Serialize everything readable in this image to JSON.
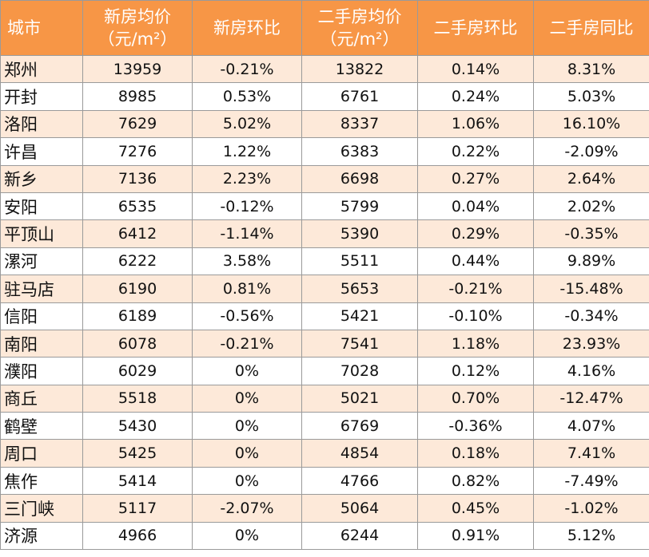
{
  "table": {
    "headers": {
      "city": "城市",
      "new_price_line1": "新房均价",
      "new_price_line2": "（元/m²）",
      "new_mom": "新房环比",
      "second_price_line1": "二手房均价",
      "second_price_line2": "（元/m²）",
      "second_mom": "二手房环比",
      "second_yoy": "二手房同比"
    },
    "rows": [
      {
        "city": "郑州",
        "new_price": "13959",
        "new_mom": "-0.21%",
        "second_price": "13822",
        "second_mom": "0.14%",
        "second_yoy": "8.31%"
      },
      {
        "city": "开封",
        "new_price": "8985",
        "new_mom": "0.53%",
        "second_price": "6761",
        "second_mom": "0.24%",
        "second_yoy": "5.03%"
      },
      {
        "city": "洛阳",
        "new_price": "7629",
        "new_mom": "5.02%",
        "second_price": "8337",
        "second_mom": "1.06%",
        "second_yoy": "16.10%"
      },
      {
        "city": "许昌",
        "new_price": "7276",
        "new_mom": "1.22%",
        "second_price": "6383",
        "second_mom": "0.22%",
        "second_yoy": "-2.09%"
      },
      {
        "city": "新乡",
        "new_price": "7136",
        "new_mom": "2.23%",
        "second_price": "6698",
        "second_mom": "0.27%",
        "second_yoy": "2.64%"
      },
      {
        "city": "安阳",
        "new_price": "6535",
        "new_mom": "-0.12%",
        "second_price": "5799",
        "second_mom": "0.04%",
        "second_yoy": "2.02%"
      },
      {
        "city": "平顶山",
        "new_price": "6412",
        "new_mom": "-1.14%",
        "second_price": "5390",
        "second_mom": "0.29%",
        "second_yoy": "-0.35%"
      },
      {
        "city": "漯河",
        "new_price": "6222",
        "new_mom": "3.58%",
        "second_price": "5511",
        "second_mom": "0.44%",
        "second_yoy": "9.89%"
      },
      {
        "city": "驻马店",
        "new_price": "6190",
        "new_mom": "0.81%",
        "second_price": "5653",
        "second_mom": "-0.21%",
        "second_yoy": "-15.48%"
      },
      {
        "city": "信阳",
        "new_price": "6189",
        "new_mom": "-0.56%",
        "second_price": "5421",
        "second_mom": "-0.10%",
        "second_yoy": "-0.34%"
      },
      {
        "city": "南阳",
        "new_price": "6078",
        "new_mom": "-0.21%",
        "second_price": "7541",
        "second_mom": "1.18%",
        "second_yoy": "23.93%"
      },
      {
        "city": "濮阳",
        "new_price": "6029",
        "new_mom": "0%",
        "second_price": "7028",
        "second_mom": "0.12%",
        "second_yoy": "4.16%"
      },
      {
        "city": "商丘",
        "new_price": "5518",
        "new_mom": "0%",
        "second_price": "5021",
        "second_mom": "0.70%",
        "second_yoy": "-12.47%"
      },
      {
        "city": "鹤壁",
        "new_price": "5430",
        "new_mom": "0%",
        "second_price": "6769",
        "second_mom": "-0.36%",
        "second_yoy": "4.07%"
      },
      {
        "city": "周口",
        "new_price": "5425",
        "new_mom": "0%",
        "second_price": "4854",
        "second_mom": "0.18%",
        "second_yoy": "7.41%"
      },
      {
        "city": "焦作",
        "new_price": "5414",
        "new_mom": "0%",
        "second_price": "4766",
        "second_mom": "0.82%",
        "second_yoy": "-7.49%"
      },
      {
        "city": "三门峡",
        "new_price": "5117",
        "new_mom": "-2.07%",
        "second_price": "5064",
        "second_mom": "0.45%",
        "second_yoy": "-1.02%"
      },
      {
        "city": "济源",
        "new_price": "4966",
        "new_mom": "0%",
        "second_price": "6244",
        "second_mom": "0.91%",
        "second_yoy": "5.12%"
      }
    ]
  },
  "colors": {
    "header_bg": "#f79646",
    "header_text": "#ffffff",
    "band_bg": "#fde9d9",
    "border": "#9a9a9a"
  }
}
